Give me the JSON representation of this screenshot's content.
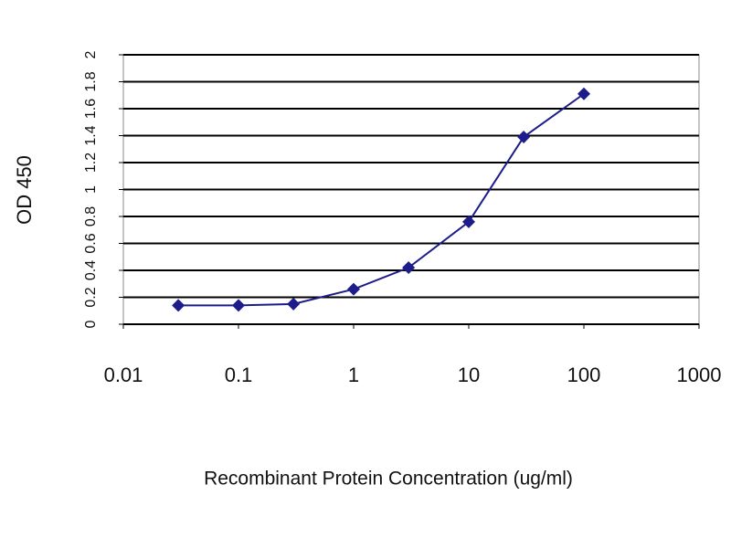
{
  "chart_data": {
    "type": "line",
    "log_x": true,
    "grid": true,
    "color": "#1c1c8a",
    "x_label": "Recombinant Protein Concentration (ug/ml)",
    "y_label": "OD 450",
    "x": [
      0.03,
      0.1,
      0.3,
      1,
      3,
      10,
      30,
      100
    ],
    "values": [
      0.14,
      0.14,
      0.15,
      0.26,
      0.42,
      0.76,
      1.39,
      1.71
    ],
    "xlim": [
      0.01,
      1000
    ],
    "xticks": [
      0.01,
      0.1,
      1,
      10,
      100,
      1000
    ],
    "ylim": [
      0,
      2
    ],
    "yticks": [
      0,
      0.2,
      0.4,
      0.6,
      0.8,
      1,
      1.2,
      1.4,
      1.6,
      1.8,
      2
    ]
  }
}
